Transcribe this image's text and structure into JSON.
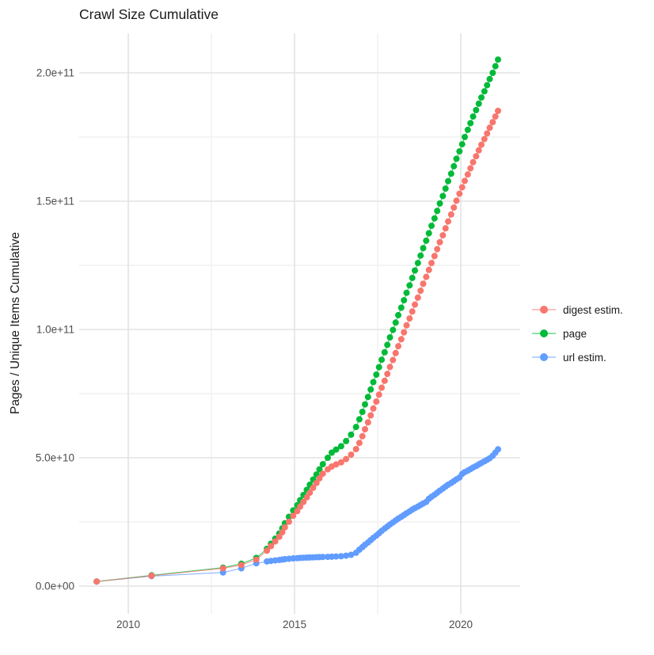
{
  "title": "Crawl Size Cumulative",
  "chart_data": {
    "type": "scatter",
    "title": "Crawl Size Cumulative",
    "xlabel": "",
    "ylabel": "Pages / Unique Items Cumulative",
    "legend_position": "right",
    "grid": "on",
    "value_unit": "items (values stored in billions, 1e9)",
    "xlim": [
      2008.55,
      2021.8
    ],
    "ylim_e9": [
      -11,
      215
    ],
    "x_major_ticks": [
      2010,
      2015,
      2020
    ],
    "x_tick_labels": [
      "2010",
      "2015",
      "2020"
    ],
    "x_minor_ticks": [
      2012.5,
      2017.5
    ],
    "y_major_ticks_e9": [
      0,
      50,
      100,
      150,
      200
    ],
    "y_tick_labels": [
      "0.0e+00",
      "5.0e+10",
      "1.0e+11",
      "1.5e+11",
      "2.0e+11"
    ],
    "y_minor_ticks_e9": [
      25,
      75,
      125,
      175
    ],
    "x": [
      2009.05,
      2010.7,
      2012.85,
      2013.4,
      2013.85,
      2014.17,
      2014.29,
      2014.42,
      2014.54,
      2014.63,
      2014.71,
      2014.83,
      2014.96,
      2015.08,
      2015.17,
      2015.27,
      2015.37,
      2015.46,
      2015.56,
      2015.66,
      2015.75,
      2015.85,
      2016.0,
      2016.12,
      2016.25,
      2016.4,
      2016.55,
      2016.7,
      2016.85,
      2016.95,
      2017.04,
      2017.12,
      2017.21,
      2017.29,
      2017.37,
      2017.46,
      2017.54,
      2017.62,
      2017.71,
      2017.79,
      2017.87,
      2017.96,
      2018.04,
      2018.12,
      2018.21,
      2018.29,
      2018.37,
      2018.46,
      2018.54,
      2018.62,
      2018.71,
      2018.79,
      2018.87,
      2018.96,
      2019.04,
      2019.12,
      2019.21,
      2019.29,
      2019.37,
      2019.46,
      2019.54,
      2019.62,
      2019.71,
      2019.79,
      2019.87,
      2019.96,
      2020.04,
      2020.12,
      2020.21,
      2020.29,
      2020.37,
      2020.46,
      2020.54,
      2020.62,
      2020.71,
      2020.79,
      2020.87,
      2020.96,
      2021.04,
      2021.12
    ],
    "series": [
      {
        "name": "digest estim.",
        "color": "#F8766D",
        "values_e9": [
          1.8,
          4.0,
          6.9,
          8.2,
          10.3,
          13.8,
          15.6,
          17.4,
          19.2,
          21.0,
          22.9,
          25.1,
          27.4,
          29.2,
          31.0,
          32.8,
          34.6,
          36.4,
          38.3,
          40.2,
          42.0,
          43.8,
          45.5,
          46.6,
          47.4,
          48.2,
          49.5,
          51.2,
          53.4,
          55.8,
          58.4,
          61.1,
          63.8,
          66.5,
          69.2,
          71.9,
          74.6,
          77.3,
          80.0,
          82.7,
          85.4,
          88.1,
          90.8,
          93.5,
          96.2,
          98.9,
          101.6,
          104.3,
          107.0,
          109.7,
          112.4,
          115.1,
          117.8,
          120.5,
          123.2,
          125.9,
          128.6,
          131.3,
          134.0,
          136.7,
          139.4,
          142.1,
          144.8,
          147.5,
          150.2,
          152.9,
          155.4,
          157.9,
          160.4,
          162.8,
          165.2,
          167.5,
          169.8,
          172.0,
          174.2,
          176.4,
          178.6,
          180.8,
          183.0,
          185.2
        ]
      },
      {
        "name": "page",
        "color": "#00BA38",
        "values_e9": [
          1.8,
          4.2,
          7.2,
          8.7,
          11.0,
          14.5,
          16.5,
          18.5,
          20.5,
          22.5,
          24.5,
          27.0,
          29.5,
          31.5,
          33.5,
          35.5,
          37.5,
          39.5,
          41.5,
          43.5,
          45.5,
          47.5,
          50.0,
          52.0,
          53.2,
          54.5,
          56.5,
          59.0,
          62.0,
          65.0,
          67.9,
          70.8,
          73.7,
          76.6,
          79.5,
          82.4,
          85.3,
          88.2,
          91.1,
          94.0,
          96.9,
          99.8,
          102.7,
          105.6,
          108.5,
          111.4,
          114.3,
          117.2,
          120.1,
          123.0,
          125.9,
          128.8,
          131.7,
          134.6,
          137.5,
          140.4,
          143.3,
          146.2,
          149.1,
          152.0,
          154.9,
          157.8,
          160.7,
          163.6,
          166.5,
          169.4,
          172.2,
          175.0,
          177.8,
          180.4,
          183.0,
          185.5,
          188.0,
          190.4,
          192.8,
          195.2,
          197.6,
          200.0,
          202.6,
          205.2
        ]
      },
      {
        "name": "url estim.",
        "color": "#619CFF",
        "values_e9": [
          1.8,
          3.9,
          5.3,
          6.9,
          8.9,
          9.6,
          9.8,
          10.0,
          10.2,
          10.35,
          10.5,
          10.65,
          10.8,
          10.9,
          11.0,
          11.05,
          11.1,
          11.15,
          11.2,
          11.25,
          11.3,
          11.35,
          11.4,
          11.45,
          11.55,
          11.65,
          11.85,
          12.2,
          13.0,
          14.2,
          15.2,
          16.1,
          17.0,
          17.9,
          18.8,
          19.7,
          20.6,
          21.5,
          22.4,
          23.2,
          24.0,
          24.8,
          25.6,
          26.3,
          27.0,
          27.7,
          28.4,
          29.1,
          29.8,
          30.4,
          31.0,
          31.6,
          32.2,
          32.8,
          34.0,
          34.8,
          35.6,
          36.4,
          37.2,
          38.0,
          38.8,
          39.5,
          40.2,
          40.9,
          41.6,
          42.3,
          43.7,
          44.4,
          45.0,
          45.6,
          46.2,
          46.8,
          47.4,
          48.0,
          48.6,
          49.2,
          49.8,
          50.8,
          52.0,
          53.3
        ]
      }
    ],
    "draw_order": [
      "url estim.",
      "page",
      "digest estim."
    ]
  },
  "colors": {
    "grid_major": "#e3e3e3",
    "grid_minor": "#f1f1f1",
    "tick_label": "#4d4d4d",
    "text": "#1a1a1a",
    "background": "#ffffff"
  }
}
